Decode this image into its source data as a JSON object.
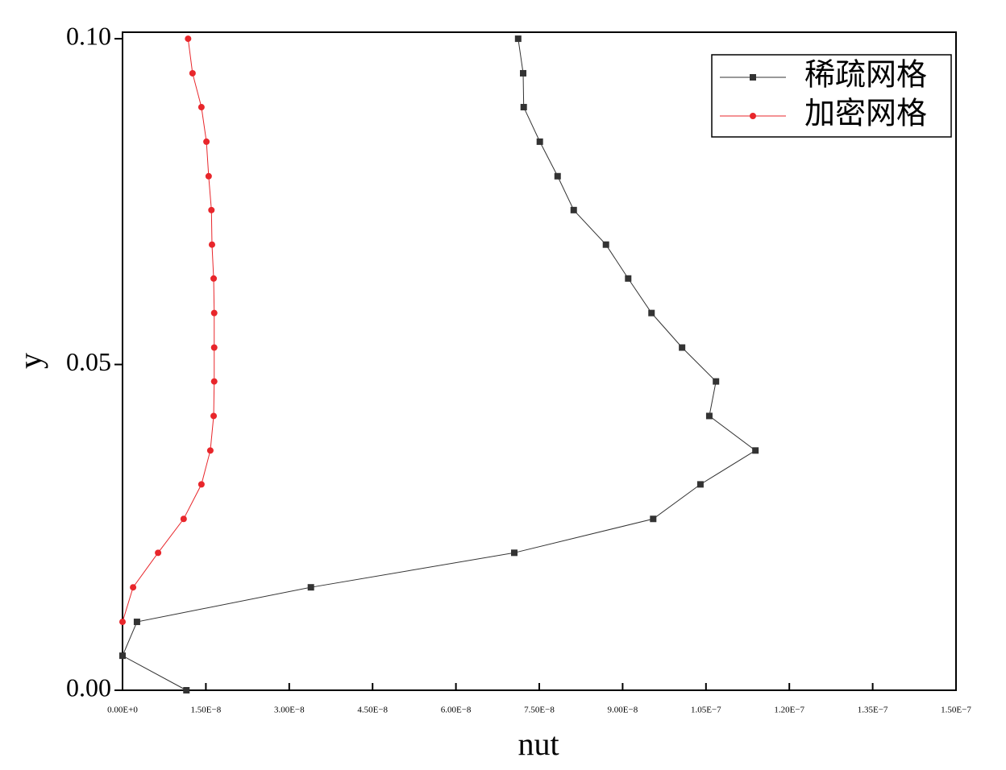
{
  "chart_data": {
    "type": "line",
    "xlabel": "nut",
    "ylabel": "y",
    "xlim": [
      0,
      1.5e-07
    ],
    "ylim": [
      0,
      0.101
    ],
    "xticks": [
      {
        "value": 0,
        "label": "0.00E+0"
      },
      {
        "value": 1.5e-08,
        "label": "1.50E−8"
      },
      {
        "value": 3e-08,
        "label": "3.00E−8"
      },
      {
        "value": 4.5e-08,
        "label": "4.50E−8"
      },
      {
        "value": 6e-08,
        "label": "6.00E−8"
      },
      {
        "value": 7.5e-08,
        "label": "7.50E−8"
      },
      {
        "value": 9e-08,
        "label": "9.00E−8"
      },
      {
        "value": 1.05e-07,
        "label": "1.05E−7"
      },
      {
        "value": 1.2e-07,
        "label": "1.20E−7"
      },
      {
        "value": 1.35e-07,
        "label": "1.35E−7"
      },
      {
        "value": 1.5e-07,
        "label": "1.50E−7"
      }
    ],
    "yticks": [
      {
        "value": 0,
        "label": "0.00"
      },
      {
        "value": 0.05,
        "label": "0.05"
      },
      {
        "value": 0.1,
        "label": "0.10"
      }
    ],
    "legend": "upper right",
    "series": [
      {
        "name": "稀疏网格",
        "color": "#333333",
        "marker": "square",
        "x": [
          1.15e-08,
          0,
          2.6e-09,
          3.39e-08,
          7.05e-08,
          9.55e-08,
          1.04e-07,
          1.139e-07,
          1.056e-07,
          1.068e-07,
          1.007e-07,
          9.52e-08,
          9.1e-08,
          8.7e-08,
          8.12e-08,
          7.83e-08,
          7.51e-08,
          7.22e-08,
          7.21e-08,
          7.12e-08
        ],
        "values": [
          0,
          0.0053,
          0.0105,
          0.0158,
          0.0211,
          0.0263,
          0.0316,
          0.0368,
          0.0421,
          0.0474,
          0.0526,
          0.0579,
          0.0632,
          0.0684,
          0.0737,
          0.0789,
          0.0842,
          0.0895,
          0.0947,
          0.1
        ]
      },
      {
        "name": "加密网格",
        "color": "#e8262b",
        "marker": "circle",
        "x": [
          0,
          1.9e-09,
          6.4e-09,
          1.1e-08,
          1.42e-08,
          1.58e-08,
          1.64e-08,
          1.65e-08,
          1.65e-08,
          1.65e-08,
          1.64e-08,
          1.61e-08,
          1.6e-08,
          1.55e-08,
          1.51e-08,
          1.42e-08,
          1.26e-08,
          1.18e-08
        ],
        "values": [
          0.0105,
          0.0158,
          0.0211,
          0.0263,
          0.0316,
          0.0368,
          0.0421,
          0.0474,
          0.0526,
          0.0579,
          0.0632,
          0.0684,
          0.0737,
          0.0789,
          0.0842,
          0.0895,
          0.0947,
          0.1
        ]
      }
    ]
  }
}
